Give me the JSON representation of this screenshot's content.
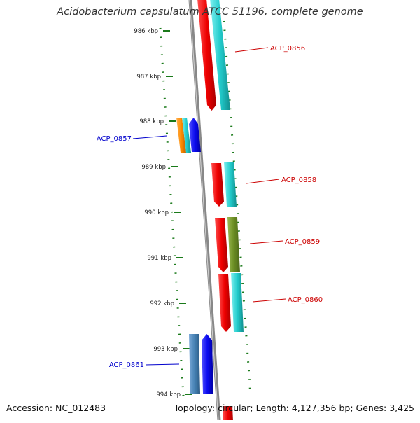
{
  "title": "Acidobacterium capsulatum ATCC 51196, complete genome",
  "footer": {
    "accession": "Accession: NC_012483",
    "summary": "Topology: circular; Length: 4,127,356 bp; Genes: 3,425"
  },
  "ruler": {
    "ticks": [
      "986 kbp",
      "987 kbp",
      "988 kbp",
      "989 kbp",
      "990 kbp",
      "991 kbp",
      "992 kbp",
      "993 kbp",
      "994 kbp"
    ],
    "color": "#1a7a1a"
  },
  "colors": {
    "forward_label": "#cc0000",
    "reverse_label": "#0000cc",
    "red": "#ee0000",
    "cyan": "#22cccc",
    "blue": "#0a0aee",
    "orange": "#ff8c00",
    "olive": "#6b8e23",
    "steelblue": "#4682b4",
    "backbone": "#888888"
  },
  "genes": [
    {
      "label": "ACP_0856",
      "strand": "forward"
    },
    {
      "label": "ACP_0857",
      "strand": "reverse"
    },
    {
      "label": "ACP_0858",
      "strand": "forward"
    },
    {
      "label": "ACP_0859",
      "strand": "forward"
    },
    {
      "label": "ACP_0860",
      "strand": "forward"
    },
    {
      "label": "ACP_0861",
      "strand": "reverse"
    }
  ]
}
